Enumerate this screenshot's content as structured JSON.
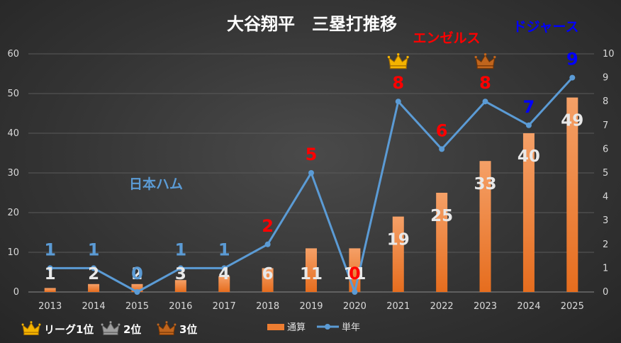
{
  "chart_data": {
    "type": "bar",
    "title": "大谷翔平　三塁打推移",
    "categories": [
      "2013",
      "2014",
      "2015",
      "2016",
      "2017",
      "2018",
      "2019",
      "2020",
      "2021",
      "2022",
      "2023",
      "2024",
      "2025"
    ],
    "series": [
      {
        "name": "通算",
        "type": "bar",
        "axis": "left",
        "color": "#ed7d31",
        "values": [
          1,
          2,
          2,
          3,
          4,
          6,
          11,
          11,
          19,
          25,
          33,
          40,
          49
        ]
      },
      {
        "name": "単年",
        "type": "line",
        "axis": "right",
        "color": "#5b9bd5",
        "values": [
          1,
          1,
          0,
          1,
          1,
          2,
          5,
          0,
          8,
          6,
          8,
          7,
          9
        ]
      }
    ],
    "ylim_left": [
      0,
      60
    ],
    "yticks_left": [
      "0",
      "10",
      "20",
      "30",
      "40",
      "50",
      "60"
    ],
    "ylim_right": [
      0,
      10
    ],
    "yticks_right": [
      "0",
      "1",
      "2",
      "3",
      "4",
      "5",
      "6",
      "7",
      "8",
      "9",
      "10"
    ],
    "season_label_colors": [
      "#5b9bd5",
      "#5b9bd5",
      "#5b9bd5",
      "#5b9bd5",
      "#5b9bd5",
      "#ff0000",
      "#ff0000",
      "#ff0000",
      "#ff0000",
      "#ff0000",
      "#ff0000",
      "#0000ff",
      "#0000ff"
    ],
    "crowns": [
      {
        "category": "2021",
        "rank": "gold"
      },
      {
        "category": "2023",
        "rank": "bronze"
      }
    ],
    "team_labels": [
      {
        "text": "日本ハム",
        "color": "#5b9bd5"
      },
      {
        "text": "エンゼルス",
        "color": "#ff0000"
      },
      {
        "text": "ドジャース",
        "color": "#0000ff"
      }
    ],
    "rank_legend": [
      {
        "text": "リーグ1位",
        "color": "gold"
      },
      {
        "text": "2位",
        "color": "silver"
      },
      {
        "text": "3位",
        "color": "bronze"
      }
    ],
    "grid": true
  }
}
